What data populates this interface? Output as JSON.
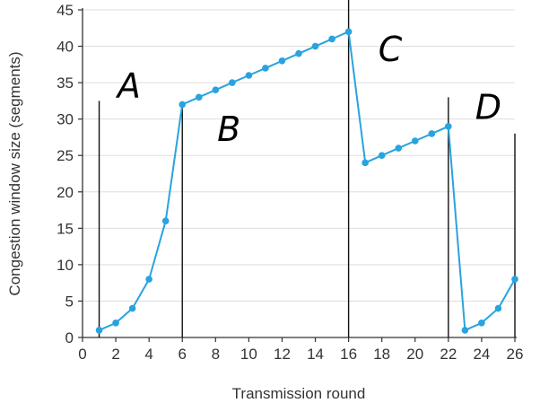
{
  "chart_data": {
    "type": "line",
    "xlabel": "Transmission round",
    "ylabel": "Congestion window size (segments)",
    "xlim": [
      0,
      26
    ],
    "ylim": [
      0,
      45
    ],
    "x_ticks": [
      0,
      2,
      4,
      6,
      8,
      10,
      12,
      14,
      16,
      18,
      20,
      22,
      24,
      26
    ],
    "y_ticks": [
      0,
      5,
      10,
      15,
      20,
      25,
      30,
      35,
      40,
      45
    ],
    "grid": "horizontal",
    "color": "#29a3e0",
    "series": [
      {
        "x": [
          1,
          2,
          3,
          4,
          5,
          6,
          7,
          8,
          9,
          10,
          11,
          12,
          13,
          14,
          15,
          16,
          17,
          18,
          19,
          20,
          21,
          22,
          23,
          24,
          25,
          26
        ],
        "y": [
          1,
          2,
          4,
          8,
          16,
          32,
          33,
          34,
          35,
          36,
          37,
          38,
          39,
          40,
          41,
          42,
          24,
          25,
          26,
          27,
          28,
          29,
          1,
          2,
          4,
          8
        ]
      }
    ],
    "annotations": [
      {
        "text": "A",
        "x": 2.8,
        "y": 33
      },
      {
        "text": "B",
        "x": 8.8,
        "y": 27
      },
      {
        "text": "C",
        "x": 18.5,
        "y": 38
      },
      {
        "text": "D",
        "x": 24.4,
        "y": 30
      }
    ],
    "vertical_markers": [
      {
        "x": 1,
        "y_top": 32.5
      },
      {
        "x": 6,
        "y_top": 32
      },
      {
        "x": 16,
        "y_top": 47
      },
      {
        "x": 22,
        "y_top": 33
      },
      {
        "x": 26,
        "y_top": 28
      }
    ]
  }
}
